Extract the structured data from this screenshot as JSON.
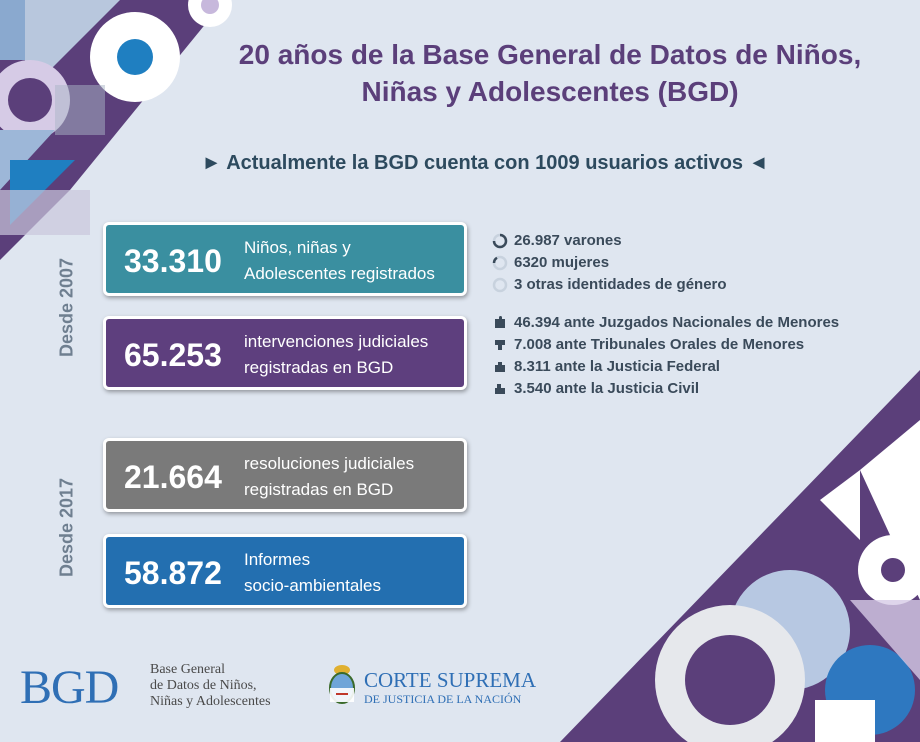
{
  "title": "20 años de la Base General de Datos de Niños, Niñas y Adolescentes (BGD)",
  "subtitle": "► Actualmente la BGD cuenta con 1009 usuarios activos ◄",
  "section_2007": "Desde 2007",
  "section_2017": "Desde 2017",
  "cards": [
    {
      "number": "33.310",
      "line1": "Niños, niñas y",
      "line2": "Adolescentes registrados",
      "color": "#3a8fa0"
    },
    {
      "number": "65.253",
      "line1": "intervenciones judiciales",
      "line2": "registradas en BGD",
      "color": "#5e3f7e"
    },
    {
      "number": "21.664",
      "line1": "resoluciones judiciales",
      "line2": "registradas en BGD",
      "color": "#7a7a7a"
    },
    {
      "number": "58.872",
      "line1": "Informes",
      "line2": "socio-ambientales",
      "color": "#236fb0"
    }
  ],
  "gender": [
    {
      "text": "26.987 varones",
      "icon": "gauge-icon"
    },
    {
      "text": "6320 mujeres",
      "icon": "gauge-icon"
    },
    {
      "text": "3 otras identidades de género",
      "icon": "gauge-icon"
    }
  ],
  "courts": [
    {
      "text": "46.394 ante Juzgados Nacionales de Menores",
      "icon": "puzzle-icon"
    },
    {
      "text": "7.008 ante Tribunales Orales de Menores",
      "icon": "puzzle-icon"
    },
    {
      "text": "8.311 ante la Justicia Federal",
      "icon": "puzzle-icon"
    },
    {
      "text": "3.540 ante la Justicia Civil",
      "icon": "puzzle-icon"
    }
  ],
  "footer": {
    "bgd_logo": "BGD",
    "bgd_line1": "Base General",
    "bgd_line2": "de Datos de Niños,",
    "bgd_line3": "Niñas y Adolescentes",
    "csj_title": "CORTE SUPREMA",
    "csj_sub": "DE JUSTICIA DE LA NACIÓN"
  },
  "colors": {
    "purple": "#5b3f7a",
    "teal": "#3a8fa0",
    "gray": "#7a7a7a",
    "blue": "#236fb0",
    "background": "#dfe6f0"
  }
}
